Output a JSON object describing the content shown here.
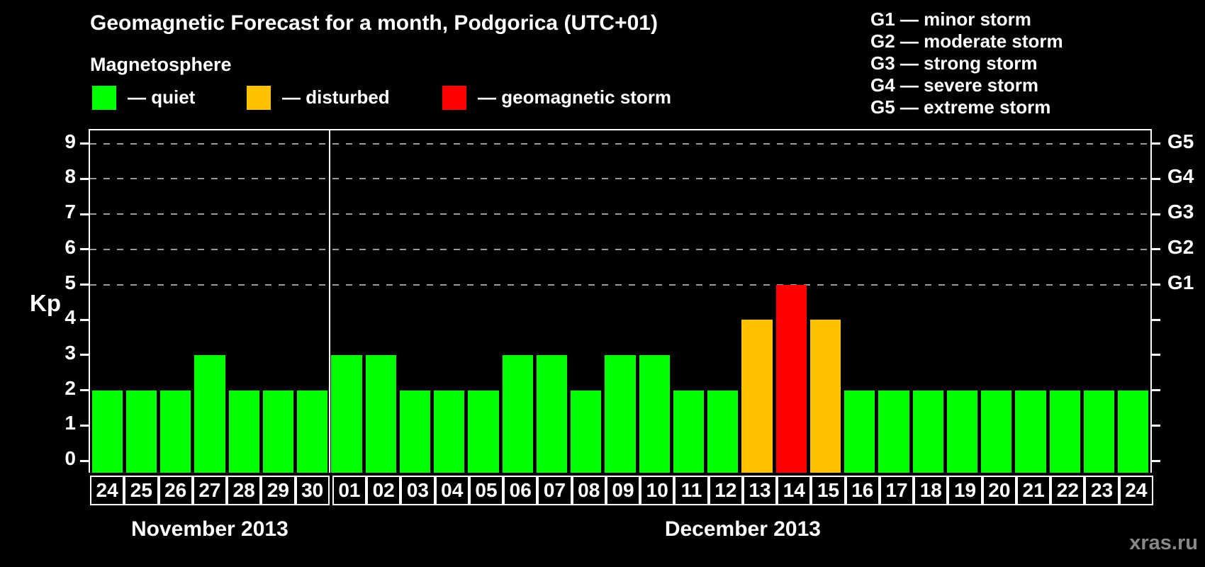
{
  "page": {
    "title": "Geomagnetic Forecast for a month, Podgorica (UTC+01)",
    "watermark": "xras.ru"
  },
  "legend": {
    "title": "Magnetosphere",
    "items": [
      {
        "label": "— quiet",
        "level": "quiet"
      },
      {
        "label": "— disturbed",
        "level": "disturbed"
      },
      {
        "label": "— geomagnetic storm",
        "level": "storm"
      }
    ]
  },
  "storm_scale_legend": [
    "G1 — minor storm",
    "G2 — moderate storm",
    "G3 — strong storm",
    "G4 — severe storm",
    "G5 — extreme storm"
  ],
  "colors": {
    "quiet": "#00ff00",
    "disturbed": "#ffc200",
    "storm": "#ff0000",
    "axis": "#ffffff",
    "grid": "#9a9a9a",
    "watermark": "#888888"
  },
  "chart_data": {
    "type": "bar",
    "ylabel": "Kp",
    "ylim": [
      0,
      9
    ],
    "yticks": [
      0,
      1,
      2,
      3,
      4,
      5,
      6,
      7,
      8,
      9
    ],
    "gridlines_at": [
      5,
      6,
      7,
      8,
      9
    ],
    "grid": "dashed-horizontal",
    "legend_position": "top-left",
    "right_axis": [
      {
        "kp": 5,
        "label": "G1"
      },
      {
        "kp": 6,
        "label": "G2"
      },
      {
        "kp": 7,
        "label": "G3"
      },
      {
        "kp": 8,
        "label": "G4"
      },
      {
        "kp": 9,
        "label": "G5"
      }
    ],
    "months": [
      {
        "label": "November 2013",
        "days": [
          {
            "date": "24",
            "kp": 2,
            "level": "quiet"
          },
          {
            "date": "25",
            "kp": 2,
            "level": "quiet"
          },
          {
            "date": "26",
            "kp": 2,
            "level": "quiet"
          },
          {
            "date": "27",
            "kp": 3,
            "level": "quiet"
          },
          {
            "date": "28",
            "kp": 2,
            "level": "quiet"
          },
          {
            "date": "29",
            "kp": 2,
            "level": "quiet"
          },
          {
            "date": "30",
            "kp": 2,
            "level": "quiet"
          }
        ]
      },
      {
        "label": "December 2013",
        "days": [
          {
            "date": "01",
            "kp": 3,
            "level": "quiet"
          },
          {
            "date": "02",
            "kp": 3,
            "level": "quiet"
          },
          {
            "date": "03",
            "kp": 2,
            "level": "quiet"
          },
          {
            "date": "04",
            "kp": 2,
            "level": "quiet"
          },
          {
            "date": "05",
            "kp": 2,
            "level": "quiet"
          },
          {
            "date": "06",
            "kp": 3,
            "level": "quiet"
          },
          {
            "date": "07",
            "kp": 3,
            "level": "quiet"
          },
          {
            "date": "08",
            "kp": 2,
            "level": "quiet"
          },
          {
            "date": "09",
            "kp": 3,
            "level": "quiet"
          },
          {
            "date": "10",
            "kp": 3,
            "level": "quiet"
          },
          {
            "date": "11",
            "kp": 2,
            "level": "quiet"
          },
          {
            "date": "12",
            "kp": 2,
            "level": "quiet"
          },
          {
            "date": "13",
            "kp": 4,
            "level": "disturbed"
          },
          {
            "date": "14",
            "kp": 5,
            "level": "storm"
          },
          {
            "date": "15",
            "kp": 4,
            "level": "disturbed"
          },
          {
            "date": "16",
            "kp": 2,
            "level": "quiet"
          },
          {
            "date": "17",
            "kp": 2,
            "level": "quiet"
          },
          {
            "date": "18",
            "kp": 2,
            "level": "quiet"
          },
          {
            "date": "19",
            "kp": 2,
            "level": "quiet"
          },
          {
            "date": "20",
            "kp": 2,
            "level": "quiet"
          },
          {
            "date": "21",
            "kp": 2,
            "level": "quiet"
          },
          {
            "date": "22",
            "kp": 2,
            "level": "quiet"
          },
          {
            "date": "23",
            "kp": 2,
            "level": "quiet"
          },
          {
            "date": "24",
            "kp": 2,
            "level": "quiet"
          }
        ]
      }
    ]
  }
}
